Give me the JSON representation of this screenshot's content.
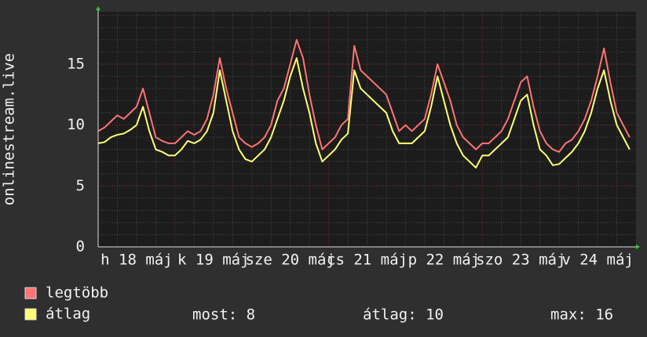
{
  "chart_data": {
    "type": "line",
    "y_label": "onlinestream.live",
    "categories": [
      null,
      null,
      null,
      null,
      null,
      null,
      "h 18 máj",
      null,
      null,
      null,
      null,
      null,
      null,
      null,
      null,
      null,
      null,
      null,
      "k 19 máj",
      null,
      null,
      null,
      null,
      null,
      null,
      null,
      null,
      null,
      null,
      null,
      "sze 20 máj",
      null,
      null,
      null,
      null,
      null,
      null,
      null,
      null,
      null,
      null,
      null,
      "cs 21 máj",
      null,
      null,
      null,
      null,
      null,
      null,
      null,
      null,
      null,
      null,
      null,
      "p 22 máj",
      null,
      null,
      null,
      null,
      null,
      null,
      null,
      null,
      null,
      null,
      null,
      "szo 23 máj",
      null,
      null,
      null,
      null,
      null,
      null,
      null,
      null,
      null,
      null,
      null,
      "v 24 máj",
      null,
      null,
      null,
      null,
      null
    ],
    "series": [
      {
        "name": "legtöbb",
        "color": "#ff7373",
        "values": [
          9.5,
          9.8,
          10.3,
          10.8,
          10.5,
          11,
          11.5,
          13,
          11,
          9,
          8.7,
          8.5,
          8.5,
          9,
          9.5,
          9.2,
          9.5,
          10.5,
          12.5,
          15.5,
          13,
          11,
          9,
          8.5,
          8.2,
          8.5,
          9,
          10,
          12,
          13,
          15,
          17,
          15.5,
          12.5,
          10,
          8,
          8.5,
          9,
          10,
          10.5,
          16.5,
          14.5,
          14,
          13.5,
          13,
          12.5,
          11,
          9.5,
          10,
          9.5,
          10,
          10.5,
          12.5,
          15,
          13.5,
          12,
          10,
          9,
          8.5,
          8,
          8.5,
          8.5,
          9,
          9.5,
          10.5,
          12,
          13.5,
          14,
          11.5,
          9.5,
          8.5,
          8,
          7.8,
          8.5,
          8.8,
          9.5,
          10.5,
          12,
          14,
          16.3,
          13.5,
          11,
          10,
          9
        ]
      },
      {
        "name": "átlag",
        "color": "#ffff73",
        "values": [
          8.5,
          8.6,
          9,
          9.2,
          9.3,
          9.6,
          10,
          11.5,
          9.5,
          8,
          7.8,
          7.5,
          7.5,
          8,
          8.7,
          8.5,
          8.8,
          9.5,
          11,
          14.5,
          12,
          9.5,
          8,
          7.2,
          7,
          7.5,
          8,
          9,
          10.5,
          12,
          14,
          15.5,
          13,
          11,
          8.5,
          7,
          7.5,
          8,
          8.8,
          9.3,
          14.5,
          13,
          12.5,
          12,
          11.5,
          11,
          9.5,
          8.5,
          8.5,
          8.5,
          9,
          9.5,
          11.5,
          14,
          12,
          10,
          8.5,
          7.5,
          7,
          6.5,
          7.5,
          7.5,
          8,
          8.5,
          9,
          10.5,
          12,
          12.5,
          10,
          8,
          7.5,
          6.7,
          6.8,
          7.3,
          7.8,
          8.5,
          9.5,
          11,
          13,
          14.5,
          12,
          10,
          9,
          8
        ]
      }
    ],
    "stats": [
      "most: 8",
      "átlag: 10",
      "max: 16"
    ],
    "ylim": [
      0,
      19.3
    ],
    "yticks": [
      0,
      5,
      10,
      15
    ],
    "minor_grid": 1,
    "grid": true
  }
}
